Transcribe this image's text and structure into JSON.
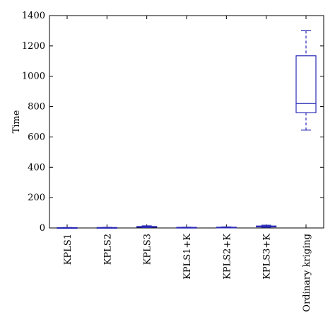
{
  "chart_data": {
    "type": "box",
    "title": "",
    "xlabel": "",
    "ylabel": "Time",
    "ylim": [
      0,
      1400
    ],
    "yticks": [
      0,
      200,
      400,
      600,
      800,
      1000,
      1200,
      1400
    ],
    "grid": false,
    "legend": "none",
    "box_color": "#2a2ab8",
    "categories": [
      "KPLS1",
      "KPLS2",
      "KPLS3",
      "KPLS1+K",
      "KPLS2+K",
      "KPLS3+K",
      "Ordinary kriging"
    ],
    "boxes": [
      {
        "min": 0.5,
        "q1": 1,
        "median": 1.5,
        "q3": 2,
        "max": 3
      },
      {
        "min": 1,
        "q1": 1.5,
        "median": 2,
        "q3": 3,
        "max": 4
      },
      {
        "min": 3,
        "q1": 5,
        "median": 7,
        "q3": 10,
        "max": 14
      },
      {
        "min": 1,
        "q1": 2,
        "median": 3,
        "q3": 4,
        "max": 5
      },
      {
        "min": 1,
        "q1": 2,
        "median": 3,
        "q3": 5,
        "max": 7
      },
      {
        "min": 4,
        "q1": 7,
        "median": 10,
        "q3": 13,
        "max": 18
      },
      {
        "min": 645,
        "q1": 760,
        "median": 820,
        "q3": 1135,
        "max": 1300
      }
    ]
  }
}
